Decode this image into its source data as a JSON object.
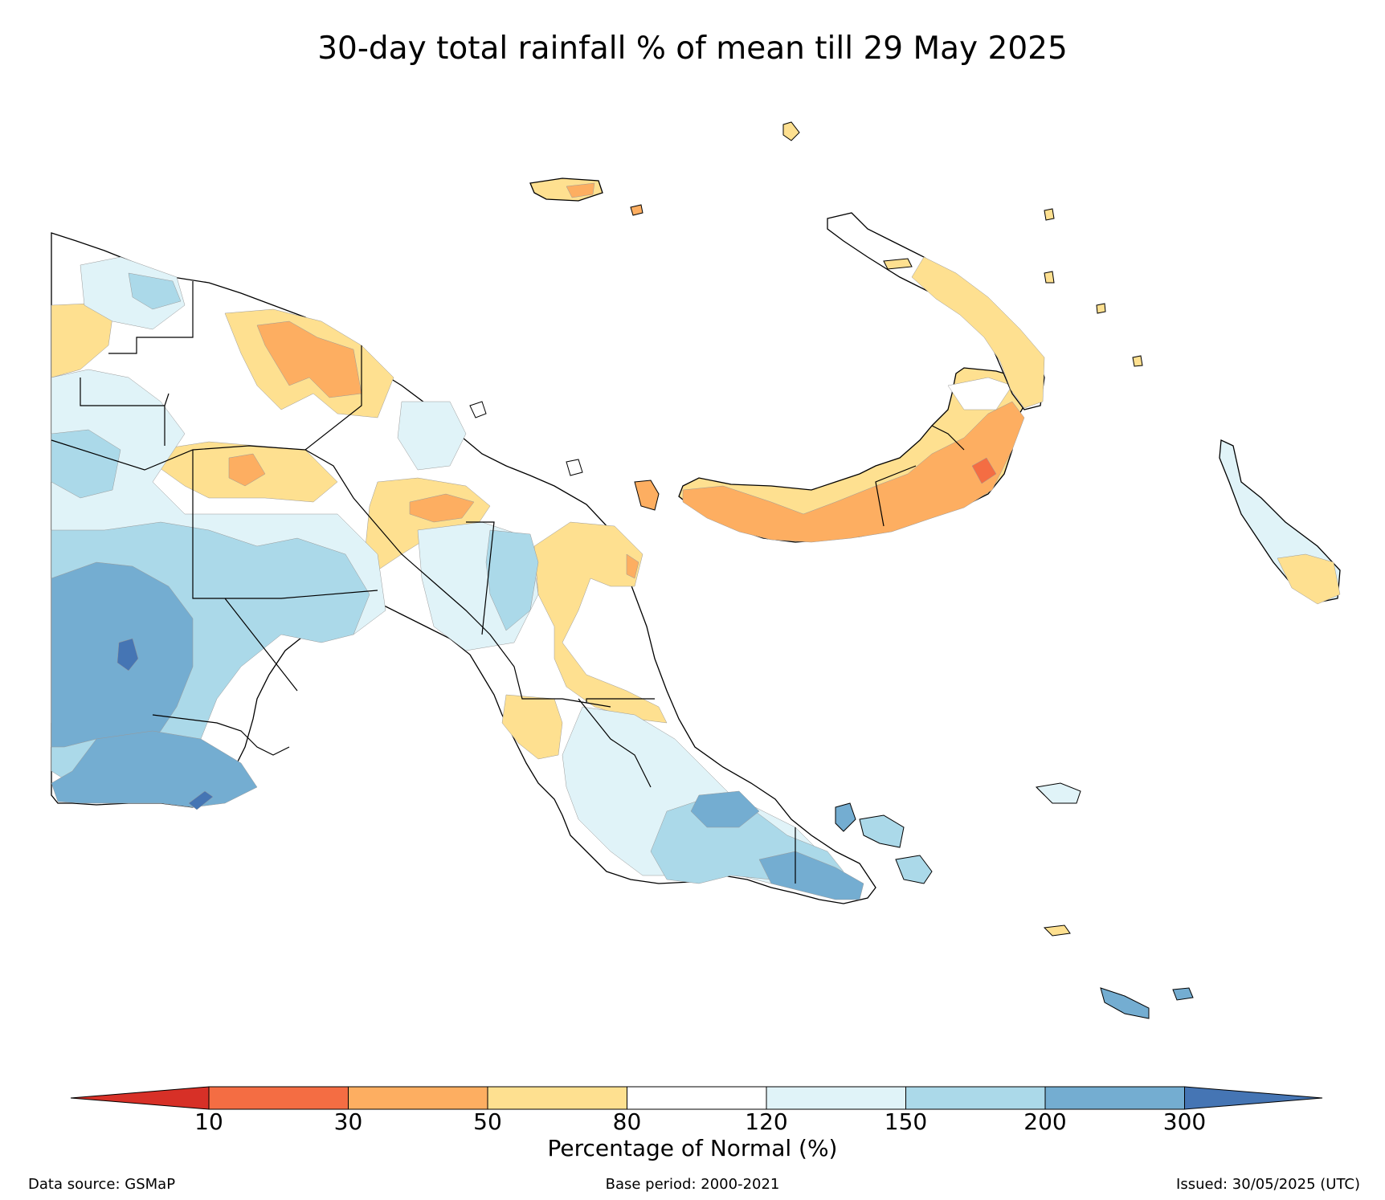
{
  "title": "30-day total rainfall % of mean till 29 May 2025",
  "colorbar": {
    "label": "Percentage of Normal (%)",
    "ticks": [
      "10",
      "30",
      "50",
      "80",
      "120",
      "150",
      "200",
      "300"
    ],
    "colors": {
      "below_10": "#d73027",
      "10_30": "#f46d43",
      "30_50": "#fdae61",
      "50_80": "#fee090",
      "80_120": "#ffffff",
      "120_150": "#e0f3f8",
      "150_200": "#abd9e9",
      "200_300": "#74add1",
      "above_300": "#4575b4"
    }
  },
  "footer": {
    "source": "Data source: GSMaP",
    "base_period": "Base period: 2000-2021",
    "issued": "Issued: 30/05/2025 (UTC)"
  }
}
